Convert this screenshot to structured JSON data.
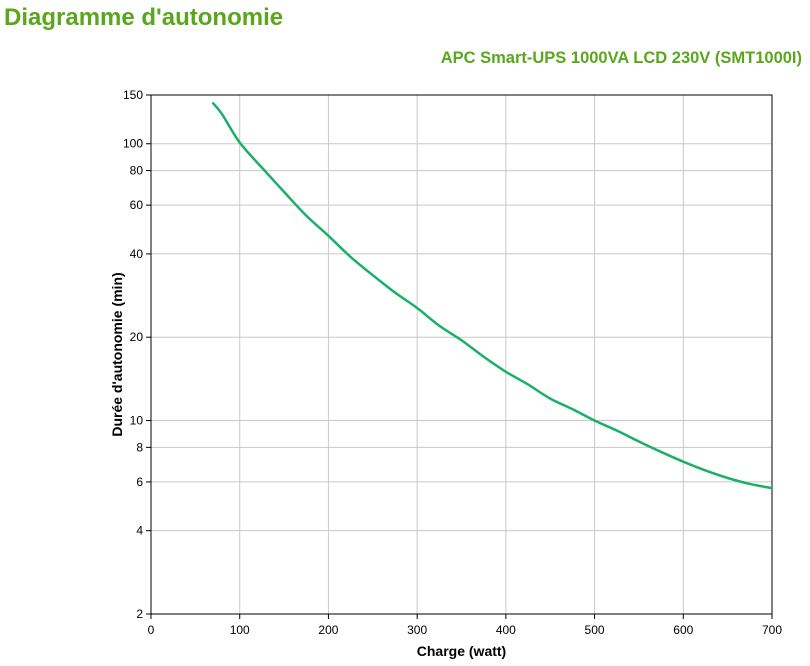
{
  "page": {
    "title": "Diagramme d'autonomie"
  },
  "chart_data": {
    "type": "line",
    "title": "",
    "subtitle": "APC Smart-UPS 1000VA LCD 230V (SMT1000I)",
    "xlabel": "Charge (watt)",
    "ylabel": "Durée d'autonomie (min)",
    "xlim": [
      0,
      700
    ],
    "ylim": [
      2,
      150
    ],
    "yscale": "log",
    "grid": true,
    "legend": "none",
    "xticks": [
      0,
      100,
      200,
      300,
      400,
      500,
      600,
      700
    ],
    "yticks": [
      2,
      4,
      6,
      8,
      10,
      20,
      40,
      60,
      80,
      100,
      150
    ],
    "series": [
      {
        "color": "#1ab069",
        "x": [
          70,
          80,
          100,
          125,
          150,
          175,
          200,
          225,
          250,
          275,
          300,
          325,
          350,
          375,
          400,
          425,
          450,
          475,
          500,
          525,
          550,
          575,
          600,
          625,
          650,
          675,
          700
        ],
        "y": [
          140,
          128,
          101,
          82,
          67,
          55,
          46.5,
          39,
          33.5,
          29,
          25.5,
          22,
          19.5,
          17,
          15,
          13.5,
          12,
          11,
          10,
          9.2,
          8.4,
          7.7,
          7.1,
          6.6,
          6.2,
          5.9,
          5.7
        ]
      }
    ]
  }
}
